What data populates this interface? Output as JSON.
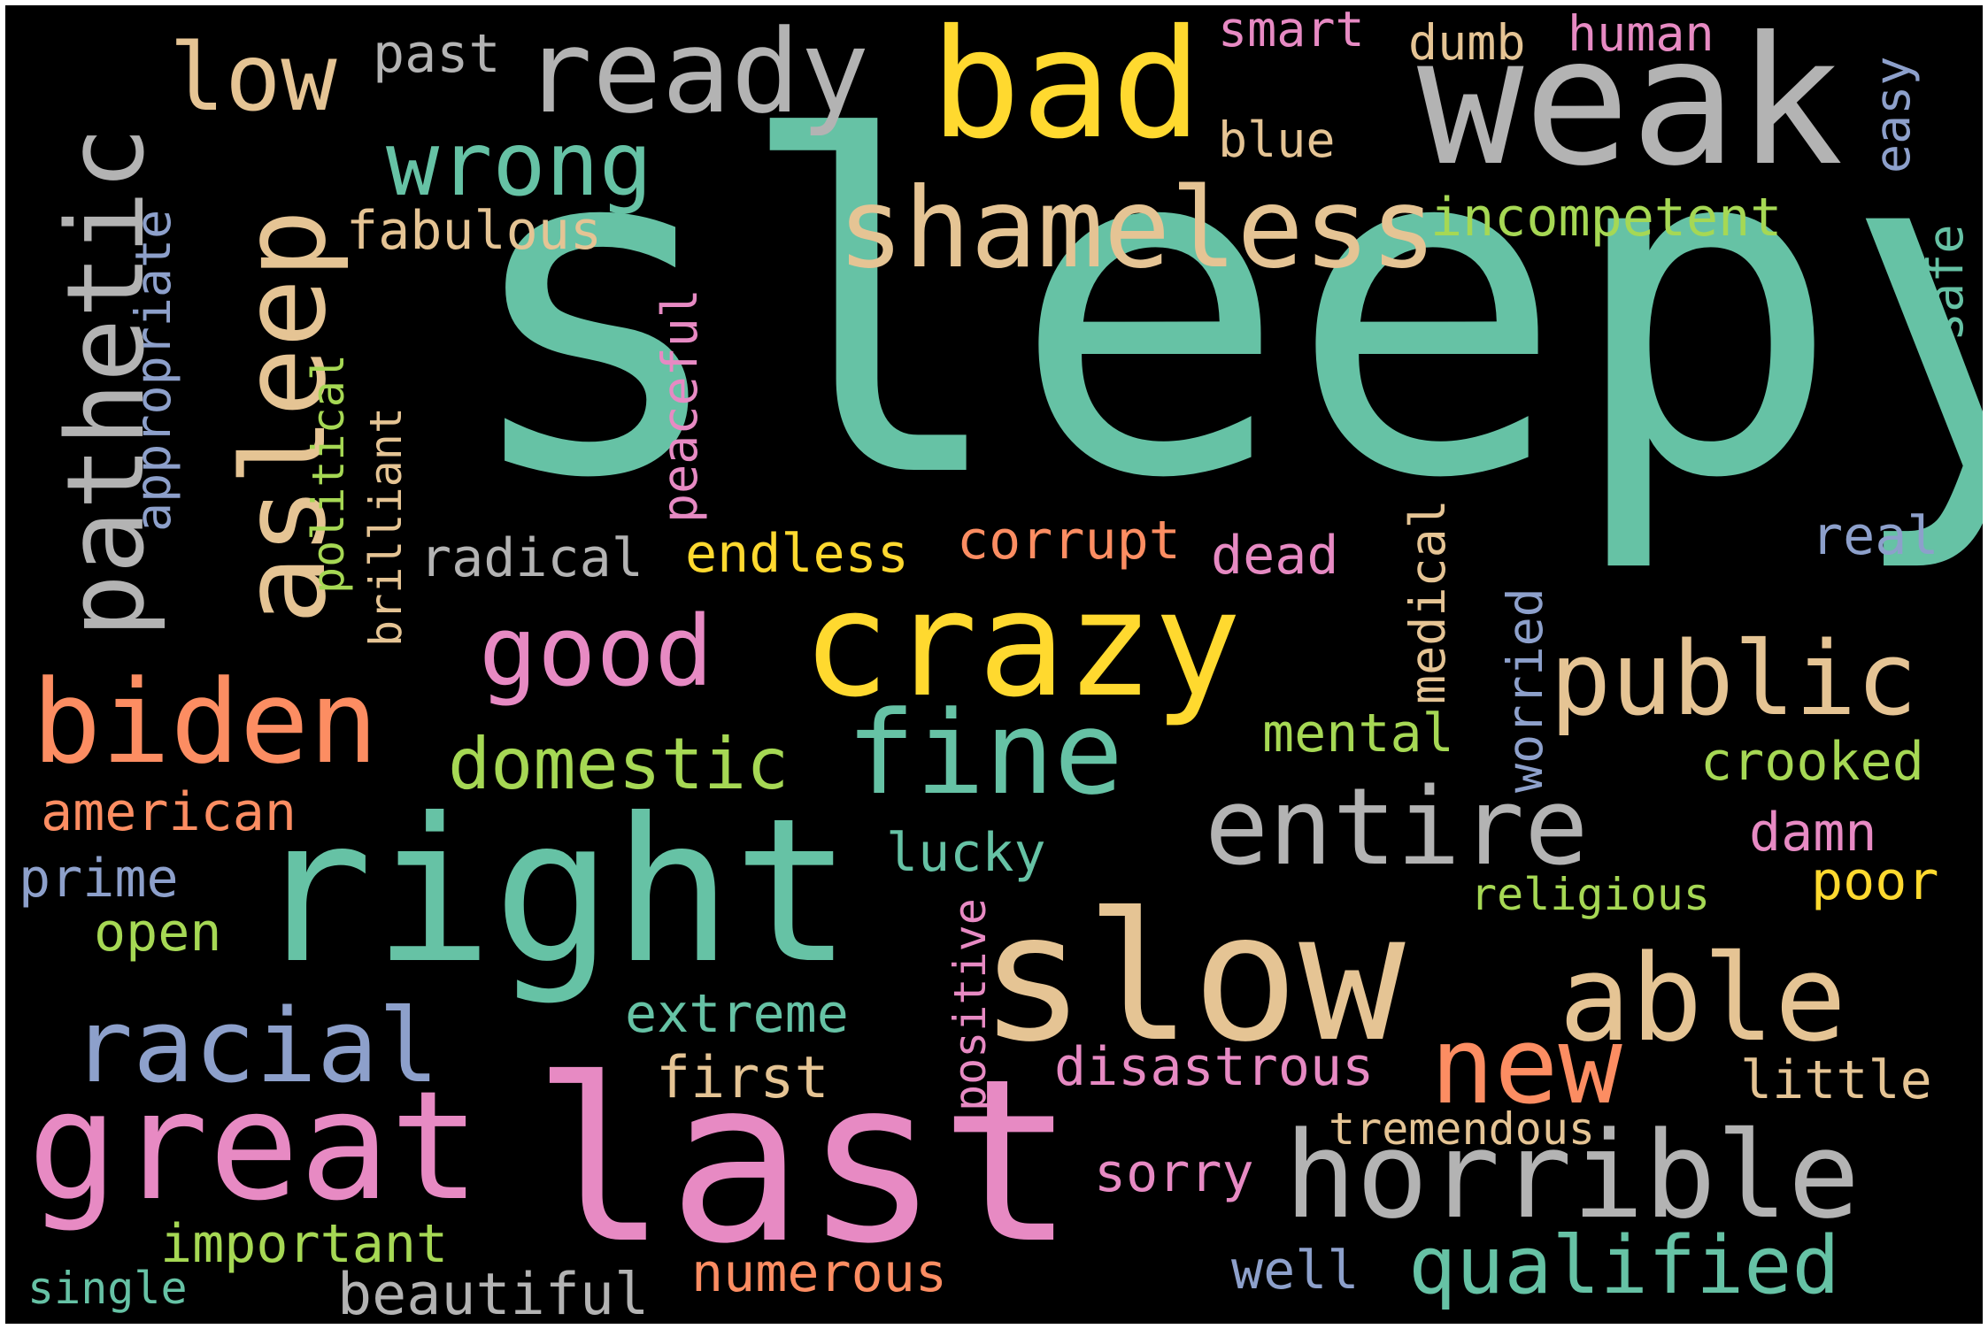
{
  "palette": {
    "background": "#000000",
    "teal": "#66c2a5",
    "orange": "#fc8d62",
    "blue": "#8da0cb",
    "pink": "#e78ac3",
    "green": "#a6d854",
    "yellow": "#ffd92f",
    "tan": "#e5c494",
    "gray": "#b3b3b3"
  },
  "words": [
    {
      "text": "sleepy",
      "color": "teal",
      "orientation": "horizontal"
    },
    {
      "text": "weak",
      "color": "gray",
      "orientation": "horizontal"
    },
    {
      "text": "bad",
      "color": "yellow",
      "orientation": "horizontal"
    },
    {
      "text": "ready",
      "color": "gray",
      "orientation": "horizontal"
    },
    {
      "text": "low",
      "color": "tan",
      "orientation": "horizontal"
    },
    {
      "text": "past",
      "color": "gray",
      "orientation": "horizontal"
    },
    {
      "text": "smart",
      "color": "pink",
      "orientation": "horizontal"
    },
    {
      "text": "dumb",
      "color": "tan",
      "orientation": "horizontal"
    },
    {
      "text": "human",
      "color": "pink",
      "orientation": "horizontal"
    },
    {
      "text": "easy",
      "color": "blue",
      "orientation": "vertical"
    },
    {
      "text": "blue",
      "color": "tan",
      "orientation": "horizontal"
    },
    {
      "text": "wrong",
      "color": "teal",
      "orientation": "horizontal"
    },
    {
      "text": "shameless",
      "color": "tan",
      "orientation": "horizontal"
    },
    {
      "text": "incompetent",
      "color": "green",
      "orientation": "horizontal"
    },
    {
      "text": "fabulous",
      "color": "tan",
      "orientation": "horizontal"
    },
    {
      "text": "asleep",
      "color": "tan",
      "orientation": "vertical"
    },
    {
      "text": "pathetic",
      "color": "gray",
      "orientation": "vertical"
    },
    {
      "text": "appropriate",
      "color": "blue",
      "orientation": "vertical"
    },
    {
      "text": "political",
      "color": "green",
      "orientation": "vertical"
    },
    {
      "text": "brilliant",
      "color": "tan",
      "orientation": "vertical"
    },
    {
      "text": "peaceful",
      "color": "pink",
      "orientation": "vertical"
    },
    {
      "text": "safe",
      "color": "teal",
      "orientation": "vertical"
    },
    {
      "text": "real",
      "color": "blue",
      "orientation": "horizontal"
    },
    {
      "text": "radical",
      "color": "gray",
      "orientation": "horizontal"
    },
    {
      "text": "endless",
      "color": "yellow",
      "orientation": "horizontal"
    },
    {
      "text": "corrupt",
      "color": "orange",
      "orientation": "horizontal"
    },
    {
      "text": "dead",
      "color": "pink",
      "orientation": "horizontal"
    },
    {
      "text": "medical",
      "color": "tan",
      "orientation": "vertical"
    },
    {
      "text": "worried",
      "color": "blue",
      "orientation": "vertical"
    },
    {
      "text": "crazy",
      "color": "yellow",
      "orientation": "horizontal"
    },
    {
      "text": "good",
      "color": "pink",
      "orientation": "horizontal"
    },
    {
      "text": "biden",
      "color": "orange",
      "orientation": "horizontal"
    },
    {
      "text": "public",
      "color": "tan",
      "orientation": "horizontal"
    },
    {
      "text": "fine",
      "color": "teal",
      "orientation": "horizontal"
    },
    {
      "text": "domestic",
      "color": "green",
      "orientation": "horizontal"
    },
    {
      "text": "mental",
      "color": "green",
      "orientation": "horizontal"
    },
    {
      "text": "crooked",
      "color": "green",
      "orientation": "horizontal"
    },
    {
      "text": "entire",
      "color": "gray",
      "orientation": "horizontal"
    },
    {
      "text": "american",
      "color": "orange",
      "orientation": "horizontal"
    },
    {
      "text": "damn",
      "color": "pink",
      "orientation": "horizontal"
    },
    {
      "text": "lucky",
      "color": "teal",
      "orientation": "horizontal"
    },
    {
      "text": "prime",
      "color": "blue",
      "orientation": "horizontal"
    },
    {
      "text": "poor",
      "color": "yellow",
      "orientation": "horizontal"
    },
    {
      "text": "right",
      "color": "teal",
      "orientation": "horizontal"
    },
    {
      "text": "religious",
      "color": "green",
      "orientation": "horizontal"
    },
    {
      "text": "open",
      "color": "green",
      "orientation": "horizontal"
    },
    {
      "text": "slow",
      "color": "tan",
      "orientation": "horizontal"
    },
    {
      "text": "able",
      "color": "tan",
      "orientation": "horizontal"
    },
    {
      "text": "positive",
      "color": "pink",
      "orientation": "vertical"
    },
    {
      "text": "extreme",
      "color": "teal",
      "orientation": "horizontal"
    },
    {
      "text": "racial",
      "color": "blue",
      "orientation": "horizontal"
    },
    {
      "text": "new",
      "color": "orange",
      "orientation": "horizontal"
    },
    {
      "text": "disastrous",
      "color": "pink",
      "orientation": "horizontal"
    },
    {
      "text": "little",
      "color": "tan",
      "orientation": "horizontal"
    },
    {
      "text": "first",
      "color": "tan",
      "orientation": "horizontal"
    },
    {
      "text": "great",
      "color": "pink",
      "orientation": "horizontal"
    },
    {
      "text": "last",
      "color": "pink",
      "orientation": "horizontal"
    },
    {
      "text": "tremendous",
      "color": "tan",
      "orientation": "horizontal"
    },
    {
      "text": "horrible",
      "color": "gray",
      "orientation": "horizontal"
    },
    {
      "text": "sorry",
      "color": "pink",
      "orientation": "horizontal"
    },
    {
      "text": "important",
      "color": "green",
      "orientation": "horizontal"
    },
    {
      "text": "well",
      "color": "blue",
      "orientation": "horizontal"
    },
    {
      "text": "qualified",
      "color": "teal",
      "orientation": "horizontal"
    },
    {
      "text": "numerous",
      "color": "orange",
      "orientation": "horizontal"
    },
    {
      "text": "single",
      "color": "teal",
      "orientation": "horizontal"
    },
    {
      "text": "beautiful",
      "color": "gray",
      "orientation": "horizontal"
    }
  ]
}
